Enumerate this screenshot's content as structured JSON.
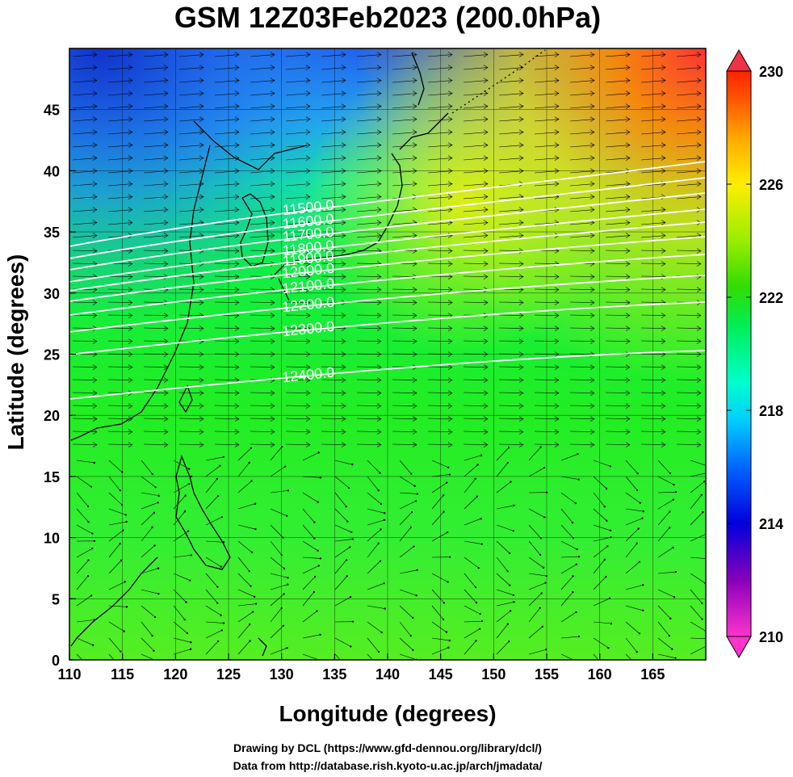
{
  "title": "GSM 12Z03Feb2023 (200.0hPa)",
  "x_axis": {
    "label": "Longitude (degrees)",
    "ticks": [
      "110",
      "115",
      "120",
      "125",
      "130",
      "135",
      "140",
      "145",
      "150",
      "155",
      "160",
      "165"
    ],
    "range": [
      110,
      170
    ]
  },
  "y_axis": {
    "label": "Latitude  (degrees)",
    "ticks": [
      "0",
      "5",
      "10",
      "15",
      "20",
      "25",
      "30",
      "35",
      "40",
      "45"
    ],
    "range": [
      0,
      50
    ]
  },
  "colorbar": {
    "ticks": [
      "210",
      "214",
      "218",
      "222",
      "226",
      "230"
    ],
    "range": [
      210,
      230
    ],
    "colors": [
      "#ff33cc",
      "#8800bb",
      "#0000dd",
      "#0066ff",
      "#00ccff",
      "#00ffcc",
      "#00ee55",
      "#33dd00",
      "#99ee00",
      "#ffee00",
      "#ffaa00",
      "#ff5500",
      "#ff2200",
      "#ee3344"
    ]
  },
  "contours": [
    {
      "label": "11500.0",
      "lon": 132.5
    },
    {
      "label": "11600.0",
      "lon": 132.5
    },
    {
      "label": "11700.0",
      "lon": 132.5
    },
    {
      "label": "11800.0",
      "lon": 132.5
    },
    {
      "label": "11900.0",
      "lon": 132.5
    },
    {
      "label": "12000.0",
      "lon": 132.5
    },
    {
      "label": "12100.0",
      "lon": 132.5
    },
    {
      "label": "12200.0",
      "lon": 132.5
    },
    {
      "label": "12300.0",
      "lon": 132.5
    },
    {
      "label": "12400.0",
      "lon": 132.5
    }
  ],
  "credits": {
    "line1": "Drawing by DCL (https://www.gfd-dennou.org/library/dcl/)",
    "line2": "Data from http://database.rish.kyoto-u.ac.jp/arch/jmadata/"
  }
}
